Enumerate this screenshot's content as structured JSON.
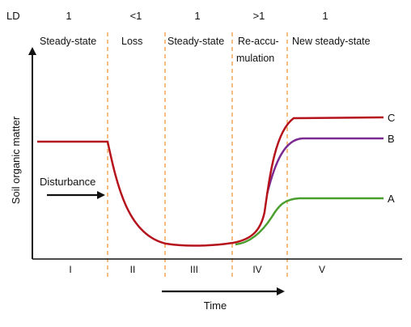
{
  "ld": {
    "label": "LD",
    "values": [
      "1",
      "<1",
      "1",
      ">1",
      "1"
    ]
  },
  "phases": {
    "names": [
      "Steady-state",
      "Loss",
      "Steady-state",
      "Re-accu-",
      "mulation",
      "New steady-state"
    ],
    "numerals": [
      "I",
      "II",
      "III",
      "IV",
      "V"
    ]
  },
  "axes": {
    "y_label": "Soil organic matter",
    "x_label": "Time"
  },
  "annotation": {
    "disturbance": "Disturbance"
  },
  "curves": [
    {
      "label": "C",
      "color": "#b5121b"
    },
    {
      "label": "B",
      "color": "#7a2a91"
    },
    {
      "label": "A",
      "color": "#4a9e2e"
    }
  ],
  "colors": {
    "divider": "#f2a04a",
    "axis": "#111111"
  }
}
